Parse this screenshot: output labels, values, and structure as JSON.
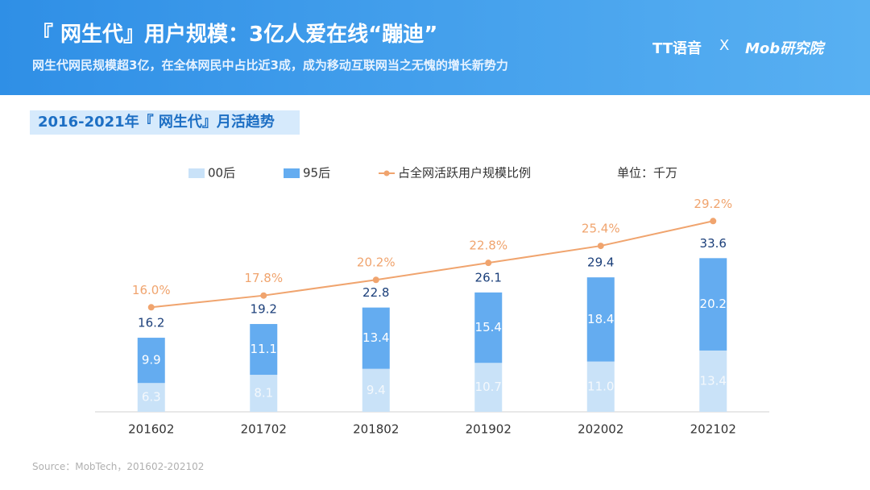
{
  "header": {
    "title": "『 网生代』用户规模：3亿人爱在线“蹦迪”",
    "subtitle": "网生代网民规模超3亿，在全体网民中占比近3成，成为移动互联网当之无愧的增长新势力",
    "logos": [
      "TT语音",
      "X",
      "Mob研究院"
    ]
  },
  "section_label": "2016-2021年『 网生代』月活趋势",
  "source": "Source：MobTech，201602-202102",
  "chart_data": {
    "type": "bar",
    "stacked": true,
    "unit_note": "单位：千万",
    "categories": [
      "201602",
      "201702",
      "201802",
      "201902",
      "202002",
      "202102"
    ],
    "series": [
      {
        "name": "00后",
        "color": "#c9e2f8",
        "values": [
          6.3,
          8.1,
          9.4,
          10.7,
          11.0,
          13.4
        ],
        "value_labels": [
          "6.3",
          "8.1",
          "9.4",
          "10.7",
          "11.0",
          "13.4"
        ]
      },
      {
        "name": "95后",
        "color": "#64acf0",
        "values": [
          9.9,
          11.1,
          13.4,
          15.4,
          18.4,
          20.2
        ],
        "value_labels": [
          "9.9",
          "11.1",
          "13.4",
          "15.4",
          "18.4",
          "20.2"
        ]
      },
      {
        "name": "占全网活跃用户规模比例",
        "type": "line",
        "axis": "y2",
        "color": "#f0a46e",
        "values": [
          16.0,
          17.8,
          20.2,
          22.8,
          25.4,
          29.2
        ],
        "value_labels": [
          "16.0%",
          "17.8%",
          "20.2%",
          "22.8%",
          "25.4%",
          "29.2%"
        ]
      }
    ],
    "totals": [
      16.2,
      19.2,
      22.8,
      26.1,
      29.4,
      33.6
    ],
    "ylim": [
      0,
      40
    ],
    "y2lim": [
      0,
      28
    ]
  }
}
